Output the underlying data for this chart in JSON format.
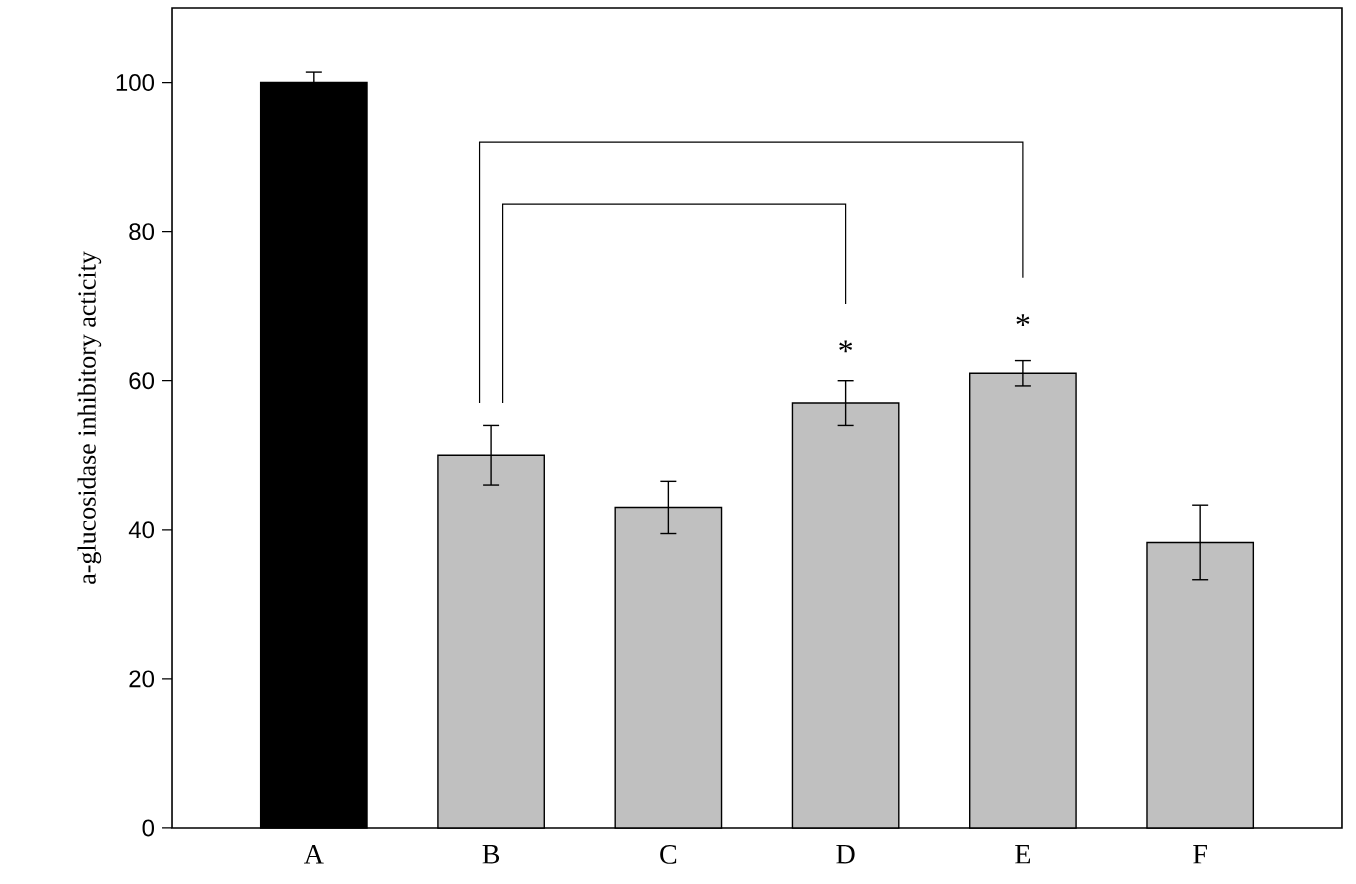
{
  "chart_data": {
    "type": "bar",
    "ylabel": "a-glucosidase inhibitory acticity",
    "categories": [
      "A",
      "B",
      "C",
      "D",
      "E",
      "F"
    ],
    "values": [
      100,
      50,
      43,
      57,
      61,
      38.3
    ],
    "errors": [
      1.4,
      4,
      3.5,
      3,
      1.7,
      5
    ],
    "colors": [
      "#000000",
      "#c0c0c0",
      "#c0c0c0",
      "#c0c0c0",
      "#c0c0c0",
      "#c0c0c0"
    ],
    "ylim": [
      0,
      110
    ],
    "yticks": [
      0,
      20,
      40,
      60,
      80,
      100
    ],
    "annotations": [
      "*",
      "*"
    ]
  }
}
